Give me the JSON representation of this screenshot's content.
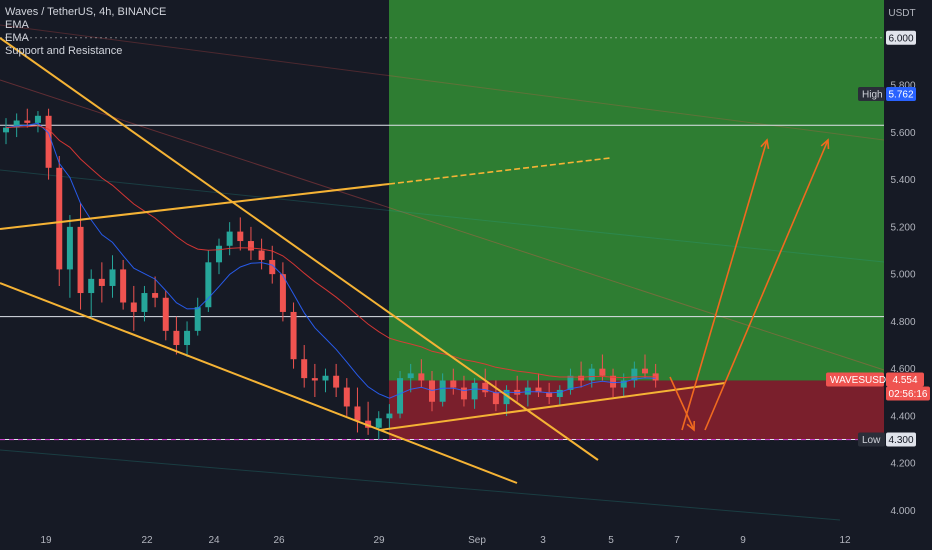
{
  "header": {
    "symbol_line": "Waves / TetherUS, 4h, BINANCE",
    "indicators": [
      "EMA",
      "EMA",
      "Support and Resistance"
    ]
  },
  "chart_data": {
    "type": "candlestick",
    "symbol": "WAVESUSDT",
    "interval": "4h",
    "exchange": "BINANCE",
    "y_axis": {
      "unit": "USDT",
      "range": [
        3.93,
        6.16
      ],
      "ticks": [
        "5.800",
        "5.600",
        "5.400",
        "5.200",
        "5.000",
        "4.800",
        "4.600",
        "4.400",
        "4.200",
        "4.000"
      ]
    },
    "x_axis": {
      "ticks": [
        "19",
        "22",
        "24",
        "26",
        "29",
        "Sep",
        "3",
        "5",
        "7",
        "9",
        "12"
      ]
    },
    "markers": {
      "target": {
        "label": "",
        "value": "6.000"
      },
      "high": {
        "label": "High",
        "value": "5.762"
      },
      "current": {
        "label": "WAVESUSDT",
        "value": "4.554",
        "countdown": "02:56:16"
      },
      "low": {
        "label": "Low",
        "value": "4.300"
      }
    },
    "horizontal_levels": [
      5.63,
      4.82,
      4.3
    ],
    "position": {
      "entry": 4.55,
      "target": 6.0,
      "stop": 4.3
    },
    "colors": {
      "background": "#161a25",
      "up": "#26a69a",
      "down": "#ef5350",
      "profit_zone": "#2e7d32",
      "loss_zone": "#7a1f2c",
      "trendline": "#f5b335",
      "projection": "#f06a1f",
      "ema_fast": "#2962ff",
      "ema_slow": "#e53935",
      "low_line": "#c23cc2"
    },
    "candles": [
      [
        5.6,
        5.66,
        5.55,
        5.62
      ],
      [
        5.62,
        5.68,
        5.58,
        5.65
      ],
      [
        5.65,
        5.7,
        5.62,
        5.64
      ],
      [
        5.64,
        5.69,
        5.6,
        5.67
      ],
      [
        5.67,
        5.7,
        5.4,
        5.45
      ],
      [
        5.45,
        5.5,
        4.95,
        5.02
      ],
      [
        5.02,
        5.25,
        4.9,
        5.2
      ],
      [
        5.2,
        5.3,
        4.85,
        4.92
      ],
      [
        4.92,
        5.02,
        4.82,
        4.98
      ],
      [
        4.98,
        5.05,
        4.88,
        4.95
      ],
      [
        4.95,
        5.08,
        4.9,
        5.02
      ],
      [
        5.02,
        5.06,
        4.85,
        4.88
      ],
      [
        4.88,
        4.95,
        4.76,
        4.84
      ],
      [
        4.84,
        4.95,
        4.8,
        4.92
      ],
      [
        4.92,
        4.99,
        4.86,
        4.9
      ],
      [
        4.9,
        4.93,
        4.72,
        4.76
      ],
      [
        4.76,
        4.82,
        4.66,
        4.7
      ],
      [
        4.7,
        4.8,
        4.65,
        4.76
      ],
      [
        4.76,
        4.9,
        4.74,
        4.86
      ],
      [
        4.86,
        5.1,
        4.84,
        5.05
      ],
      [
        5.05,
        5.15,
        5.0,
        5.12
      ],
      [
        5.12,
        5.22,
        5.08,
        5.18
      ],
      [
        5.18,
        5.24,
        5.1,
        5.14
      ],
      [
        5.14,
        5.2,
        5.06,
        5.1
      ],
      [
        5.1,
        5.15,
        5.02,
        5.06
      ],
      [
        5.06,
        5.12,
        4.96,
        5.0
      ],
      [
        5.0,
        5.05,
        4.8,
        4.84
      ],
      [
        4.84,
        4.88,
        4.6,
        4.64
      ],
      [
        4.64,
        4.7,
        4.52,
        4.56
      ],
      [
        4.56,
        4.62,
        4.48,
        4.55
      ],
      [
        4.55,
        4.6,
        4.5,
        4.57
      ],
      [
        4.57,
        4.62,
        4.48,
        4.52
      ],
      [
        4.52,
        4.56,
        4.4,
        4.44
      ],
      [
        4.44,
        4.52,
        4.33,
        4.38
      ],
      [
        4.38,
        4.46,
        4.32,
        4.35
      ],
      [
        4.35,
        4.42,
        4.3,
        4.39
      ],
      [
        4.39,
        4.45,
        4.34,
        4.41
      ],
      [
        4.41,
        4.59,
        4.39,
        4.56
      ],
      [
        4.56,
        4.62,
        4.5,
        4.58
      ],
      [
        4.58,
        4.64,
        4.52,
        4.55
      ],
      [
        4.55,
        4.59,
        4.42,
        4.46
      ],
      [
        4.46,
        4.58,
        4.44,
        4.55
      ],
      [
        4.55,
        4.6,
        4.49,
        4.52
      ],
      [
        4.52,
        4.57,
        4.44,
        4.47
      ],
      [
        4.47,
        4.56,
        4.43,
        4.54
      ],
      [
        4.54,
        4.6,
        4.48,
        4.5
      ],
      [
        4.5,
        4.55,
        4.42,
        4.45
      ],
      [
        4.45,
        4.53,
        4.4,
        4.51
      ],
      [
        4.51,
        4.57,
        4.46,
        4.49
      ],
      [
        4.49,
        4.55,
        4.44,
        4.52
      ],
      [
        4.52,
        4.58,
        4.48,
        4.5
      ],
      [
        4.5,
        4.54,
        4.45,
        4.48
      ],
      [
        4.48,
        4.53,
        4.44,
        4.51
      ],
      [
        4.51,
        4.6,
        4.49,
        4.57
      ],
      [
        4.57,
        4.63,
        4.52,
        4.55
      ],
      [
        4.55,
        4.62,
        4.52,
        4.6
      ],
      [
        4.6,
        4.66,
        4.55,
        4.57
      ],
      [
        4.57,
        4.6,
        4.48,
        4.52
      ],
      [
        4.52,
        4.58,
        4.48,
        4.55
      ],
      [
        4.55,
        4.63,
        4.52,
        4.6
      ],
      [
        4.6,
        4.66,
        4.56,
        4.58
      ],
      [
        4.58,
        4.62,
        4.52,
        4.55
      ]
    ]
  }
}
